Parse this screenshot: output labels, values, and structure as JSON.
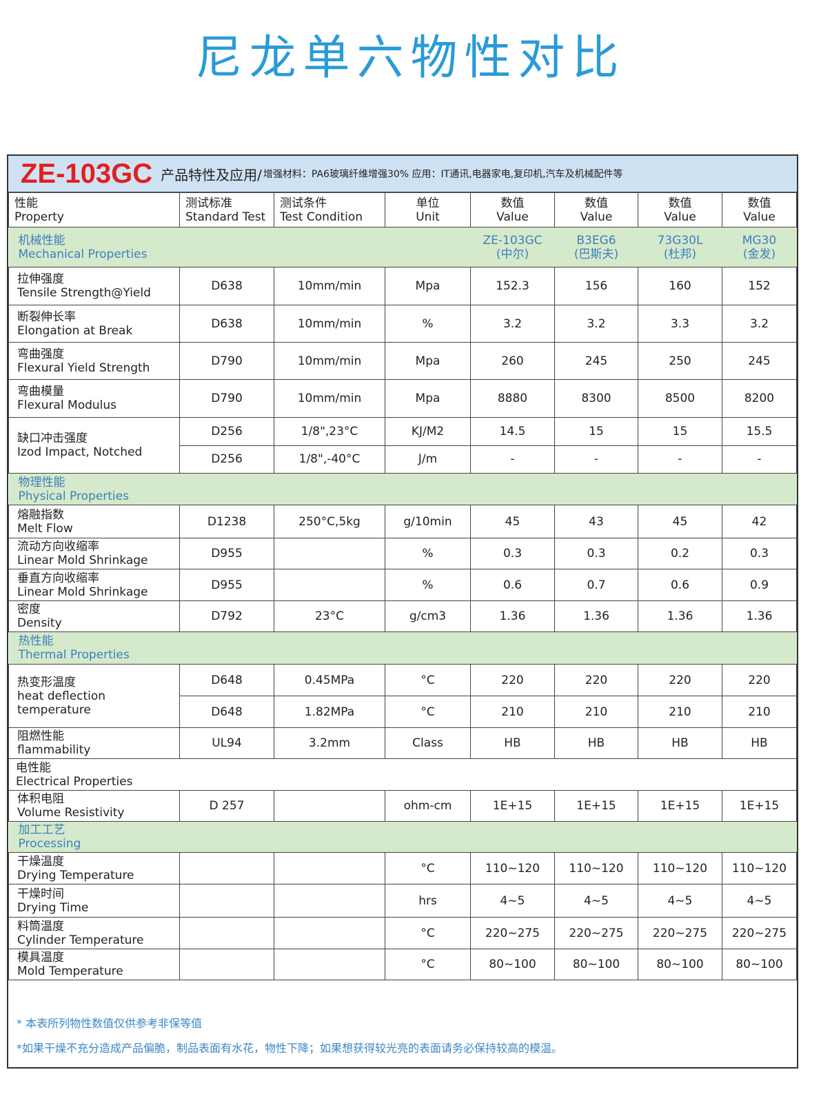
{
  "title": "尼龙单六物性对比",
  "banner": {
    "model": "ZE-103GC",
    "heading": "产品特性及应用/",
    "detail": "增强材料：PA6玻璃纤维增强30%  应用：IT通讯,电器家电,复印机,汽车及机械配件等"
  },
  "header": [
    {
      "zh": "性能",
      "en": "Property"
    },
    {
      "zh": "测试标准",
      "en": "Standard Test"
    },
    {
      "zh": "测试条件",
      "en": "Test Condition"
    },
    {
      "zh": "单位",
      "en": "Unit"
    },
    {
      "zh": "数值",
      "en": "Value"
    },
    {
      "zh": "数值",
      "en": "Value"
    },
    {
      "zh": "数值",
      "en": "Value"
    },
    {
      "zh": "数值",
      "en": "Value"
    }
  ],
  "models": [
    {
      "name": "ZE-103GC",
      "brand": "(中尔)"
    },
    {
      "name": "B3EG6",
      "brand": "(巴斯夫)"
    },
    {
      "name": "73G30L",
      "brand": "(杜邦)"
    },
    {
      "name": "MG30",
      "brand": "(金发)"
    }
  ],
  "rows": [
    {
      "type": "section",
      "zh": "机械性能",
      "en": "Mechanical Properties",
      "show_models": true
    },
    {
      "type": "prop",
      "zh": "拉伸强度",
      "en": "Tensile Strength@Yield",
      "sub": [
        {
          "std": "D638",
          "cond": "10mm/min",
          "unit": "Mpa",
          "values": [
            "152.3",
            "156",
            "160",
            "152"
          ]
        }
      ]
    },
    {
      "type": "prop",
      "zh": "断裂伸长率",
      "en": "Elongation at Break",
      "sub": [
        {
          "std": "D638",
          "cond": "10mm/min",
          "unit": "%",
          "values": [
            "3.2",
            "3.2",
            "3.3",
            "3.2"
          ]
        }
      ]
    },
    {
      "type": "prop",
      "zh": "弯曲强度",
      "en": "Flexural Yield Strength",
      "sub": [
        {
          "std": "D790",
          "cond": "10mm/min",
          "unit": "Mpa",
          "values": [
            "260",
            "245",
            "250",
            "245"
          ]
        }
      ]
    },
    {
      "type": "prop",
      "zh": "弯曲模量",
      "en": "Flexural Modulus",
      "sub": [
        {
          "std": "D790",
          "cond": "10mm/min",
          "unit": "Mpa",
          "values": [
            "8880",
            "8300",
            "8500",
            "8200"
          ]
        }
      ]
    },
    {
      "type": "prop",
      "zh": "缺口冲击强度",
      "en": "Izod Impact, Notched",
      "sub": [
        {
          "std": "D256",
          "cond": "1/8\",23°C",
          "unit": "KJ/M2",
          "values": [
            "14.5",
            "15",
            "15",
            "15.5"
          ]
        },
        {
          "std": "D256",
          "cond": "1/8\",-40°C",
          "unit": "J/m",
          "values": [
            "-",
            "-",
            "-",
            "-"
          ]
        }
      ]
    },
    {
      "type": "section",
      "zh": "物理性能",
      "en": "Physical Properties"
    },
    {
      "type": "prop",
      "zh": "熔融指数",
      "en": "Melt Flow",
      "sub": [
        {
          "std": "D1238",
          "cond": "250°C,5kg",
          "unit": "g/10min",
          "values": [
            "45",
            "43",
            "45",
            "42"
          ]
        }
      ]
    },
    {
      "type": "prop",
      "zh": "流动方向收缩率",
      "en": "Linear Mold Shrinkage",
      "sub": [
        {
          "std": "D955",
          "cond": "",
          "unit": "%",
          "values": [
            "0.3",
            "0.3",
            "0.2",
            "0.3"
          ]
        }
      ]
    },
    {
      "type": "prop",
      "zh": "垂直方向收缩率",
      "en": "Linear Mold Shrinkage",
      "sub": [
        {
          "std": "D955",
          "cond": "",
          "unit": "%",
          "values": [
            "0.6",
            "0.7",
            "0.6",
            "0.9"
          ]
        }
      ]
    },
    {
      "type": "prop",
      "zh": "密度",
      "en": "Density",
      "sub": [
        {
          "std": "D792",
          "cond": "23°C",
          "unit": "g/cm3",
          "values": [
            "1.36",
            "1.36",
            "1.36",
            "1.36"
          ]
        }
      ]
    },
    {
      "type": "section",
      "zh": "热性能",
      "en": "Thermal Properties"
    },
    {
      "type": "prop",
      "zh": "热变形温度",
      "en": "heat deflection temperature",
      "sub": [
        {
          "std": "D648",
          "cond": "0.45MPa",
          "unit": "°C",
          "values": [
            "220",
            "220",
            "220",
            "220"
          ]
        },
        {
          "std": "D648",
          "cond": "1.82MPa",
          "unit": "°C",
          "values": [
            "210",
            "210",
            "210",
            "210"
          ]
        }
      ]
    },
    {
      "type": "prop",
      "zh": "阻燃性能",
      "en": "flammability",
      "sub": [
        {
          "std": "UL94",
          "cond": "3.2mm",
          "unit": "Class",
          "values": [
            "HB",
            "HB",
            "HB",
            "HB"
          ]
        }
      ]
    },
    {
      "type": "plain-section",
      "zh": "电性能",
      "en": "Electrical Properties"
    },
    {
      "type": "prop",
      "zh": "体积电阻",
      "en": "Volume Resistivity",
      "sub": [
        {
          "std": "D 257",
          "cond": "",
          "unit": "ohm-cm",
          "values": [
            "1E+15",
            "1E+15",
            "1E+15",
            "1E+15"
          ]
        }
      ]
    },
    {
      "type": "section",
      "zh": "加工工艺",
      "en": "Processing"
    },
    {
      "type": "prop",
      "zh": "干燥温度",
      "en": "Drying Temperature",
      "sub": [
        {
          "std": "",
          "cond": "",
          "unit": "°C",
          "values": [
            "110~120",
            "110~120",
            "110~120",
            "110~120"
          ]
        }
      ]
    },
    {
      "type": "prop",
      "zh": "干燥时间",
      "en": "Drying Time",
      "sub": [
        {
          "std": "",
          "cond": "",
          "unit": "hrs",
          "values": [
            "4~5",
            "4~5",
            "4~5",
            "4~5"
          ]
        }
      ]
    },
    {
      "type": "prop",
      "zh": "料筒温度",
      "en": "Cylinder Temperature",
      "sub": [
        {
          "std": "",
          "cond": "",
          "unit": "°C",
          "values": [
            "220~275",
            "220~275",
            "220~275",
            "220~275"
          ]
        }
      ]
    },
    {
      "type": "prop",
      "zh": "模具温度",
      "en": "Mold Temperature",
      "sub": [
        {
          "std": "",
          "cond": "",
          "unit": "°C",
          "values": [
            "80~100",
            "80~100",
            "80~100",
            "80~100"
          ]
        }
      ]
    }
  ],
  "footer": [
    "* 本表所列物性数值仅供参考非保等值",
    "*如果干燥不充分造成产品偏脆，制品表面有水花，物性下降；如果想获得较光亮的表面请务必保持较高的模温。"
  ],
  "colors": {
    "title": "#2a9bd8",
    "model": "#e1201f",
    "banner_bg": "#cfe2f4",
    "section_bg": "#d5e9cb",
    "section_text": "#3d7fc0"
  }
}
